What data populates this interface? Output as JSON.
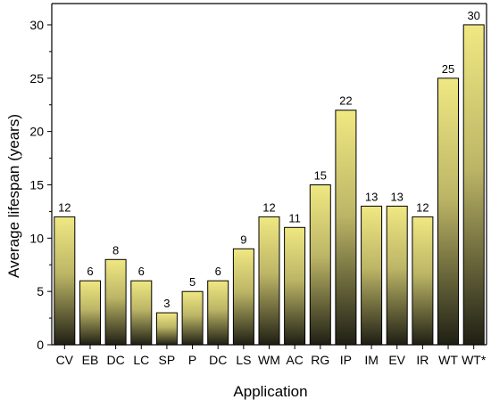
{
  "chart_data": {
    "type": "bar",
    "title": "",
    "xlabel": "Application",
    "ylabel": "Average lifespan (years)",
    "ylim": [
      0,
      32
    ],
    "yticks": [
      0,
      5,
      10,
      15,
      20,
      25,
      30
    ],
    "grid": false,
    "legend": "none",
    "categories": [
      "CV",
      "EB",
      "DC",
      "LC",
      "SP",
      "P",
      "DC",
      "LS",
      "WM",
      "AC",
      "RG",
      "IP",
      "IM",
      "EV",
      "IR",
      "WT",
      "WT*"
    ],
    "values": [
      12,
      6,
      8,
      6,
      3,
      5,
      6,
      9,
      12,
      11,
      15,
      22,
      13,
      13,
      12,
      25,
      30
    ],
    "data_labels": [
      "12",
      "6",
      "8",
      "6",
      "3",
      "5",
      "6",
      "9",
      "12",
      "11",
      "15",
      "22",
      "13",
      "13",
      "12",
      "25",
      "30"
    ],
    "colors": {
      "bar_top": "#f0e882",
      "bar_bottom": "#1f1f14",
      "bar_stroke": "#000000",
      "axis": "#000000"
    }
  }
}
